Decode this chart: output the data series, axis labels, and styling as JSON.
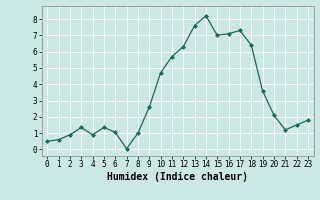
{
  "x": [
    0,
    1,
    2,
    3,
    4,
    5,
    6,
    7,
    8,
    9,
    10,
    11,
    12,
    13,
    14,
    15,
    16,
    17,
    18,
    19,
    20,
    21,
    22,
    23
  ],
  "y": [
    0.5,
    0.6,
    0.9,
    1.35,
    0.9,
    1.35,
    1.05,
    0.05,
    1.0,
    2.6,
    4.7,
    5.7,
    6.3,
    7.6,
    8.2,
    7.0,
    7.1,
    7.3,
    6.4,
    3.6,
    2.1,
    1.2,
    1.5,
    1.8
  ],
  "line_color": "#1a6b5a",
  "marker": "D",
  "marker_size": 2.0,
  "bg_color": "#cce8e4",
  "grid_color": "#ffffff",
  "xlabel": "Humidex (Indice chaleur)",
  "xlim": [
    -0.5,
    23.5
  ],
  "ylim": [
    -0.4,
    8.8
  ],
  "yticks": [
    0,
    1,
    2,
    3,
    4,
    5,
    6,
    7,
    8
  ],
  "xticks": [
    0,
    1,
    2,
    3,
    4,
    5,
    6,
    7,
    8,
    9,
    10,
    11,
    12,
    13,
    14,
    15,
    16,
    17,
    18,
    19,
    20,
    21,
    22,
    23
  ],
  "tick_fontsize": 5.5,
  "xlabel_fontsize": 7.0,
  "linewidth": 0.9
}
